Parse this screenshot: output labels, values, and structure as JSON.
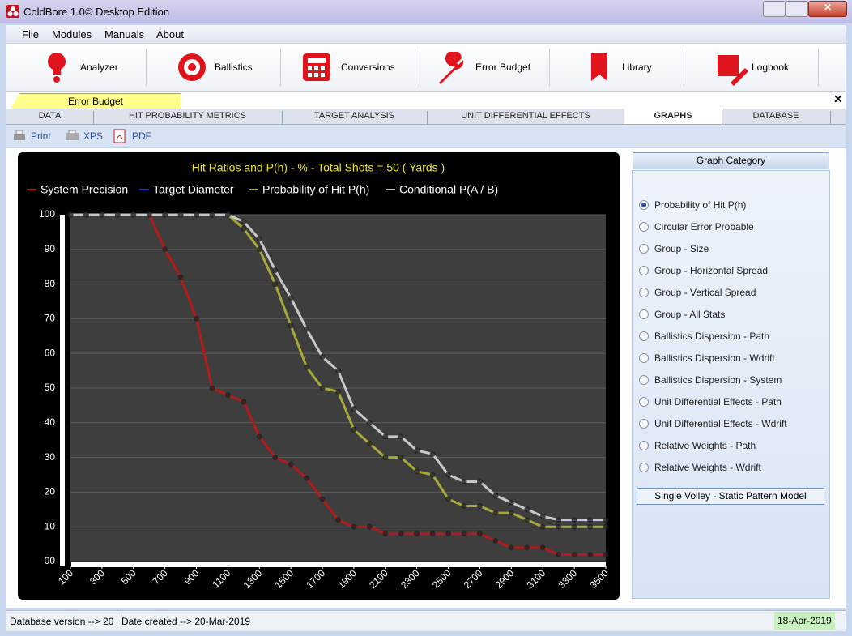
{
  "window": {
    "title": "ColdBore 1.0© Desktop Edition"
  },
  "menu": [
    "File",
    "Modules",
    "Manuals",
    "About"
  ],
  "toolbar": [
    "Analyzer",
    "Ballistics",
    "Conversions",
    "Error Budget",
    "Library",
    "Logbook"
  ],
  "document_tab": "Error Budget",
  "tabs": [
    "DATA",
    "HIT PROBABILITY METRICS",
    "TARGET ANALYSIS",
    "UNIT DIFFERENTIAL EFFECTS",
    "GRAPHS",
    "DATABASE"
  ],
  "active_tab": "GRAPHS",
  "print_bar": [
    "Print",
    "XPS",
    "PDF"
  ],
  "chart_data": {
    "type": "line",
    "title": "Hit Ratios and P(h) - % - Total Shots = 50 ( Yards )",
    "x": [
      100,
      200,
      300,
      400,
      500,
      600,
      700,
      800,
      900,
      1000,
      1100,
      1200,
      1300,
      1400,
      1500,
      1600,
      1700,
      1800,
      1900,
      2000,
      2100,
      2200,
      2300,
      2400,
      2500,
      2600,
      2700,
      2800,
      2900,
      3000,
      3100,
      3200,
      3300,
      3400,
      3500
    ],
    "series": [
      {
        "name": "System Precision",
        "color": "#b31b1b",
        "values": [
          100,
          100,
          100,
          100,
          100,
          100,
          90,
          82,
          70,
          50,
          48,
          46,
          36,
          30,
          28,
          24,
          18,
          12,
          10,
          10,
          8,
          8,
          8,
          8,
          8,
          8,
          8,
          6,
          4,
          4,
          4,
          2,
          2,
          2,
          2
        ]
      },
      {
        "name": "Target Diameter",
        "color": "#1c2fc9"
      },
      {
        "name": "Probability of Hit P(h)",
        "color": "#a8a83a",
        "values": [
          100,
          100,
          100,
          100,
          100,
          100,
          100,
          100,
          100,
          100,
          100,
          96,
          90,
          80,
          68,
          56,
          50,
          49,
          38,
          34,
          30,
          30,
          26,
          25,
          18,
          16,
          16,
          14,
          14,
          12,
          10,
          10,
          10,
          10,
          10
        ]
      },
      {
        "name": "Conditional P(A / B)",
        "color": "#c8c8c8",
        "values": [
          100,
          100,
          100,
          100,
          100,
          100,
          100,
          100,
          100,
          100,
          100,
          98,
          93,
          84,
          76,
          67,
          59,
          55,
          44,
          40,
          36,
          36,
          32,
          31,
          25,
          23,
          23,
          19,
          17,
          15,
          13,
          12,
          12,
          12,
          12
        ]
      }
    ],
    "xlim": [
      100,
      3500
    ],
    "xticks": [
      100,
      300,
      500,
      700,
      900,
      1100,
      1300,
      1500,
      1700,
      1900,
      2100,
      2300,
      2500,
      2700,
      2900,
      3100,
      3300,
      3500
    ],
    "ylim": [
      0,
      100
    ],
    "yticks": [
      {
        "value": 0,
        "label": "00"
      },
      10,
      20,
      30,
      40,
      50,
      60,
      70,
      80,
      90,
      100
    ],
    "grid": true
  },
  "graph_category": {
    "title": "Graph Category",
    "options": [
      "Probability of Hit P(h)",
      "Circular Error Probable",
      "Group - Size",
      "Group - Horizontal Spread",
      "Group - Vertical Spread",
      "Group - All Stats",
      "Ballistics Dispersion - Path",
      "Ballistics Dispersion - Wdrift",
      "Ballistics Dispersion - System",
      "Unit Differential Effects - Path",
      "Unit Differential Effects - Wdrift",
      "Relative Weights - Path",
      "Relative Weights - Wdrift"
    ],
    "selected": "Probability of Hit P(h)",
    "button": "Single Volley - Static Pattern Model"
  },
  "status": {
    "database": "Database version --> 20",
    "created": "Date created --> 20-Mar-2019",
    "date": "18-Apr-2019"
  }
}
